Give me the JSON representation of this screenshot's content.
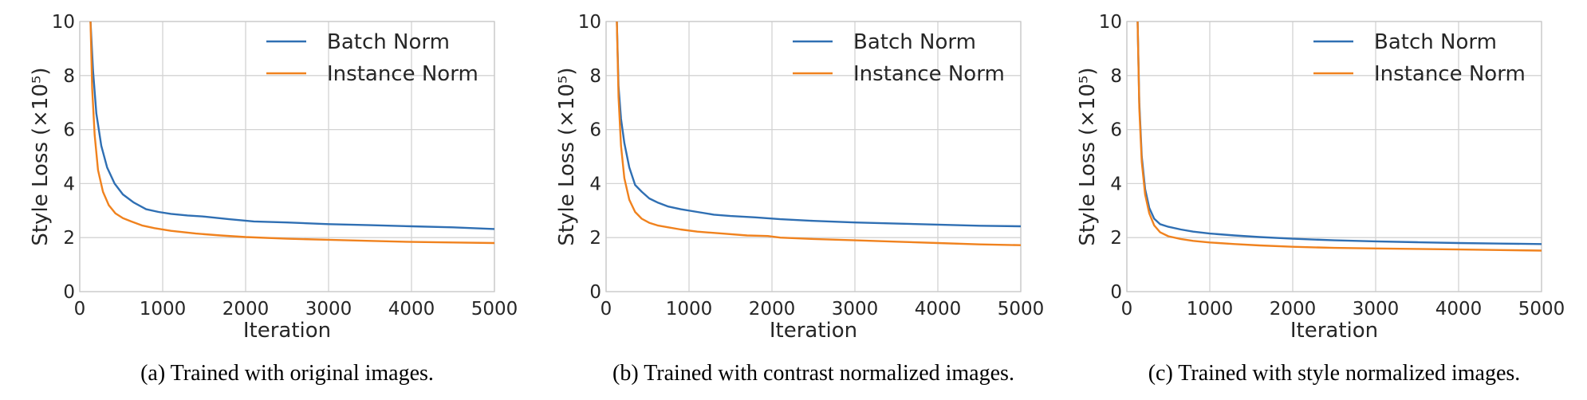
{
  "chart_data": [
    {
      "type": "line",
      "caption": "(a)  Trained with original images.",
      "xlabel": "Iteration",
      "ylabel": "Style Loss",
      "ylabel_unit": "(×10⁵)",
      "xlim": [
        0,
        5000
      ],
      "ylim": [
        0,
        10
      ],
      "xticks": [
        "0",
        "1000",
        "2000",
        "3000",
        "4000",
        "5000"
      ],
      "yticks": [
        "0",
        "2",
        "4",
        "6",
        "8",
        "10"
      ],
      "grid": true,
      "legend_position": "top-right",
      "series": [
        {
          "name": "Batch Norm",
          "color": "#2f6fb3",
          "x": [
            130,
            160,
            200,
            260,
            330,
            420,
            520,
            650,
            800,
            950,
            1100,
            1300,
            1500,
            1800,
            2100,
            2500,
            3000,
            3500,
            4000,
            4500,
            5000
          ],
          "y": [
            10,
            8.2,
            6.6,
            5.4,
            4.6,
            4.0,
            3.6,
            3.3,
            3.05,
            2.95,
            2.88,
            2.82,
            2.78,
            2.68,
            2.6,
            2.56,
            2.5,
            2.46,
            2.42,
            2.38,
            2.32
          ]
        },
        {
          "name": "Instance Norm",
          "color": "#f0821e",
          "x": [
            130,
            150,
            180,
            220,
            280,
            350,
            430,
            520,
            620,
            750,
            900,
            1100,
            1400,
            1700,
            2000,
            2500,
            3000,
            3500,
            4000,
            4500,
            5000
          ],
          "y": [
            10,
            7.5,
            5.8,
            4.5,
            3.7,
            3.2,
            2.9,
            2.72,
            2.6,
            2.45,
            2.35,
            2.25,
            2.15,
            2.08,
            2.02,
            1.96,
            1.92,
            1.88,
            1.84,
            1.82,
            1.8
          ]
        }
      ]
    },
    {
      "type": "line",
      "caption": "(b)  Trained with contrast normalized images.",
      "xlabel": "Iteration",
      "ylabel": "Style Loss",
      "ylabel_unit": "(×10⁵)",
      "xlim": [
        0,
        5000
      ],
      "ylim": [
        0,
        10
      ],
      "xticks": [
        "0",
        "1000",
        "2000",
        "3000",
        "4000",
        "5000"
      ],
      "yticks": [
        "0",
        "2",
        "4",
        "6",
        "8",
        "10"
      ],
      "grid": true,
      "legend_position": "top-right",
      "series": [
        {
          "name": "Batch Norm",
          "color": "#2f6fb3",
          "x": [
            130,
            150,
            180,
            220,
            280,
            350,
            430,
            520,
            620,
            750,
            900,
            1100,
            1300,
            1500,
            1800,
            2100,
            2500,
            3000,
            3500,
            4000,
            4500,
            5000
          ],
          "y": [
            10,
            7.6,
            6.4,
            5.5,
            4.6,
            3.95,
            3.7,
            3.45,
            3.3,
            3.15,
            3.05,
            2.95,
            2.85,
            2.8,
            2.75,
            2.68,
            2.62,
            2.56,
            2.52,
            2.48,
            2.44,
            2.42
          ]
        },
        {
          "name": "Instance Norm",
          "color": "#f0821e",
          "x": [
            130,
            150,
            180,
            220,
            280,
            350,
            430,
            520,
            620,
            750,
            900,
            1100,
            1400,
            1700,
            1950,
            2100,
            2500,
            3000,
            3500,
            4000,
            4500,
            5000
          ],
          "y": [
            10,
            7.2,
            5.4,
            4.2,
            3.4,
            2.95,
            2.7,
            2.55,
            2.45,
            2.38,
            2.3,
            2.22,
            2.15,
            2.08,
            2.06,
            2.0,
            1.95,
            1.9,
            1.85,
            1.8,
            1.75,
            1.72
          ]
        }
      ]
    },
    {
      "type": "line",
      "caption": "(c)  Trained with style normalized images.",
      "xlabel": "Iteration",
      "ylabel": "Style Loss",
      "ylabel_unit": "(×10⁵)",
      "xlim": [
        0,
        5000
      ],
      "ylim": [
        0,
        10
      ],
      "xticks": [
        "0",
        "1000",
        "2000",
        "3000",
        "4000",
        "5000"
      ],
      "yticks": [
        "0",
        "2",
        "4",
        "6",
        "8",
        "10"
      ],
      "grid": true,
      "legend_position": "top-right",
      "series": [
        {
          "name": "Batch Norm",
          "color": "#2f6fb3",
          "x": [
            130,
            150,
            180,
            220,
            270,
            330,
            400,
            500,
            650,
            800,
            1000,
            1300,
            1600,
            2000,
            2500,
            3000,
            3500,
            4000,
            4500,
            5000
          ],
          "y": [
            10,
            7.0,
            5.0,
            3.8,
            3.1,
            2.7,
            2.5,
            2.4,
            2.3,
            2.22,
            2.15,
            2.08,
            2.02,
            1.96,
            1.9,
            1.86,
            1.83,
            1.8,
            1.78,
            1.76
          ]
        },
        {
          "name": "Instance Norm",
          "color": "#f0821e",
          "x": [
            130,
            150,
            180,
            220,
            270,
            330,
            400,
            500,
            650,
            800,
            1000,
            1300,
            1600,
            2000,
            2500,
            3000,
            3500,
            4000,
            4500,
            5000
          ],
          "y": [
            10,
            6.8,
            4.8,
            3.6,
            2.9,
            2.45,
            2.2,
            2.05,
            1.95,
            1.88,
            1.82,
            1.76,
            1.71,
            1.66,
            1.62,
            1.6,
            1.58,
            1.56,
            1.54,
            1.52
          ]
        }
      ]
    }
  ]
}
